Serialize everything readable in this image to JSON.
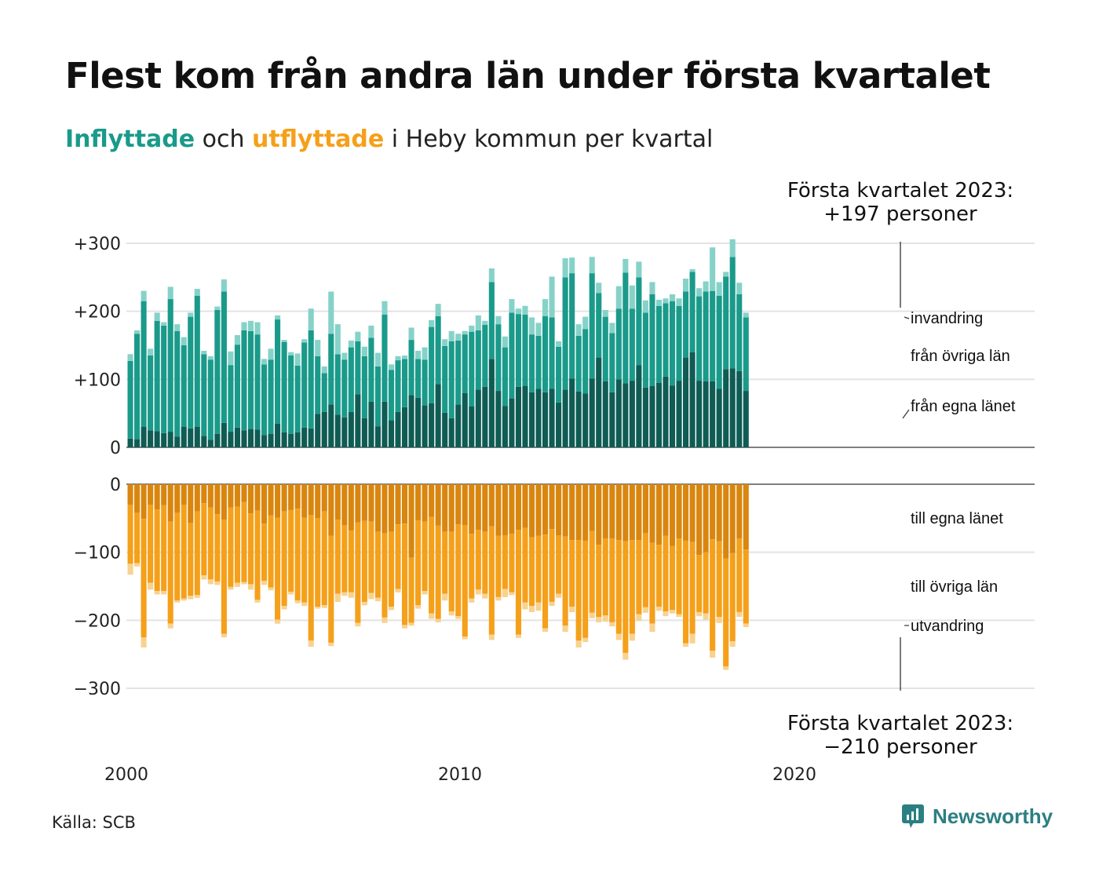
{
  "title": "Flest kom från andra län under första kvartalet",
  "subtitle": {
    "in_word": "Inflyttade",
    "mid_word": " och ",
    "out_word": "utflyttade",
    "rest": " i Heby kommun per kvartal"
  },
  "source": "Källa: SCB",
  "brand": "Newsworthy",
  "colors": {
    "in_own": "#0f5c55",
    "in_other": "#1a9a8a",
    "in_abroad": "#86d2c9",
    "out_own": "#d9860f",
    "out_other": "#f5a01a",
    "out_abroad": "#f8d290",
    "grid": "#e3e3e3",
    "brand": "#2b7f82"
  },
  "chart_data": {
    "type": "bar",
    "stacked": true,
    "x_start": "2000 Q1",
    "x_ticks": [
      "2000",
      "2010",
      "2020"
    ],
    "top_panel": {
      "y_ticks": [
        "+300",
        "+200",
        "+100",
        "0"
      ],
      "ylim": [
        0,
        300
      ],
      "series": [
        {
          "name": "från egna länet",
          "values": [
            13,
            12,
            30,
            25,
            24,
            21,
            23,
            16,
            30,
            28,
            30,
            17,
            11,
            20,
            36,
            23,
            29,
            25,
            27,
            26,
            18,
            20,
            35,
            22,
            20,
            22,
            29,
            28,
            49,
            52,
            63,
            48,
            44,
            52,
            78,
            43,
            67,
            31,
            67,
            40,
            52,
            59,
            77,
            73,
            62,
            65,
            93,
            51,
            43,
            63,
            80,
            60,
            85,
            89,
            130,
            83,
            61,
            72,
            89,
            90,
            81,
            86,
            81,
            86,
            66,
            85,
            101,
            82,
            79,
            101,
            132,
            97,
            81,
            100,
            94,
            98,
            121,
            88,
            90,
            95,
            104,
            91,
            98,
            132,
            140,
            98,
            97,
            97,
            86,
            115,
            116,
            112,
            83
          ]
        },
        {
          "name": "från övriga län",
          "values": [
            114,
            155,
            185,
            110,
            162,
            158,
            195,
            155,
            120,
            164,
            193,
            120,
            118,
            182,
            193,
            98,
            122,
            147,
            144,
            140,
            104,
            109,
            153,
            133,
            115,
            98,
            125,
            144,
            85,
            57,
            104,
            89,
            85,
            95,
            78,
            91,
            94,
            88,
            128,
            74,
            76,
            71,
            81,
            57,
            67,
            112,
            100,
            98,
            113,
            94,
            86,
            110,
            87,
            91,
            113,
            98,
            86,
            126,
            107,
            105,
            85,
            78,
            112,
            105,
            82,
            165,
            155,
            82,
            95,
            155,
            95,
            95,
            87,
            104,
            163,
            106,
            129,
            110,
            135,
            113,
            108,
            124,
            110,
            97,
            118,
            124,
            132,
            133,
            137,
            136,
            164,
            113,
            108
          ]
        },
        {
          "name": "invandring",
          "values": [
            10,
            5,
            15,
            10,
            12,
            5,
            18,
            10,
            12,
            6,
            10,
            5,
            5,
            5,
            18,
            20,
            14,
            12,
            15,
            18,
            8,
            16,
            6,
            3,
            5,
            18,
            5,
            32,
            24,
            10,
            62,
            44,
            10,
            10,
            14,
            14,
            18,
            20,
            20,
            8,
            6,
            5,
            18,
            12,
            18,
            10,
            18,
            10,
            15,
            10,
            5,
            9,
            22,
            6,
            20,
            12,
            16,
            20,
            8,
            13,
            25,
            19,
            25,
            60,
            8,
            28,
            23,
            17,
            18,
            24,
            15,
            10,
            15,
            33,
            20,
            34,
            23,
            18,
            18,
            9,
            7,
            10,
            11,
            19,
            4,
            12,
            15,
            64,
            20,
            7,
            26,
            17,
            7
          ]
        }
      ]
    },
    "bottom_panel": {
      "y_ticks": [
        "0",
        "−100",
        "−200",
        "−300"
      ],
      "ylim": [
        -300,
        0
      ],
      "series": [
        {
          "name": "till egna länet",
          "values": [
            -30,
            -42,
            -51,
            -30,
            -37,
            -31,
            -55,
            -42,
            -30,
            -57,
            -40,
            -28,
            -34,
            -44,
            -52,
            -34,
            -33,
            -26,
            -43,
            -39,
            -58,
            -46,
            -49,
            -40,
            -38,
            -36,
            -49,
            -45,
            -50,
            -40,
            -76,
            -52,
            -60,
            -68,
            -56,
            -54,
            -55,
            -70,
            -72,
            -70,
            -59,
            -58,
            -108,
            -53,
            -55,
            -48,
            -61,
            -70,
            -70,
            -59,
            -60,
            -73,
            -67,
            -70,
            -62,
            -76,
            -75,
            -73,
            -67,
            -64,
            -78,
            -76,
            -74,
            -66,
            -75,
            -77,
            -82,
            -82,
            -83,
            -69,
            -89,
            -80,
            -80,
            -82,
            -84,
            -82,
            -82,
            -72,
            -86,
            -89,
            -76,
            -91,
            -80,
            -83,
            -85,
            -104,
            -100,
            -81,
            -84,
            -109,
            -101,
            -80,
            -96
          ]
        },
        {
          "name": "till övriga län",
          "values": [
            -87,
            -74,
            -174,
            -115,
            -120,
            -126,
            -150,
            -129,
            -138,
            -107,
            -123,
            -106,
            -106,
            -99,
            -168,
            -117,
            -112,
            -118,
            -104,
            -131,
            -84,
            -106,
            -150,
            -139,
            -120,
            -135,
            -125,
            -185,
            -130,
            -138,
            -157,
            -109,
            -99,
            -91,
            -148,
            -119,
            -105,
            -97,
            -124,
            -110,
            -95,
            -149,
            -96,
            -125,
            -102,
            -142,
            -137,
            -91,
            -117,
            -135,
            -164,
            -95,
            -88,
            -91,
            -159,
            -90,
            -79,
            -86,
            -154,
            -110,
            -101,
            -98,
            -138,
            -107,
            -86,
            -131,
            -98,
            -148,
            -143,
            -120,
            -106,
            -113,
            -123,
            -138,
            -164,
            -138,
            -109,
            -109,
            -119,
            -91,
            -111,
            -94,
            -111,
            -151,
            -135,
            -84,
            -90,
            -164,
            -111,
            -159,
            -130,
            -108,
            -109
          ]
        },
        {
          "name": "utvandring",
          "values": [
            -16,
            -5,
            -15,
            -10,
            -5,
            -5,
            -7,
            -3,
            -3,
            -5,
            -4,
            -6,
            -7,
            -5,
            -5,
            -4,
            -6,
            -3,
            -8,
            -4,
            -6,
            -4,
            -6,
            -5,
            -4,
            -4,
            -5,
            -9,
            -3,
            -4,
            -5,
            -12,
            -5,
            -8,
            -5,
            -5,
            -9,
            -5,
            -8,
            -5,
            -5,
            -5,
            -4,
            -5,
            -5,
            -8,
            -5,
            -10,
            -6,
            -4,
            -4,
            -6,
            -7,
            -7,
            -8,
            -5,
            -12,
            -4,
            -5,
            -10,
            -9,
            -12,
            -5,
            -6,
            -6,
            -9,
            -8,
            -10,
            -6,
            -8,
            -8,
            -9,
            -6,
            -9,
            -10,
            -10,
            -10,
            -8,
            -12,
            -6,
            -7,
            -5,
            -4,
            -5,
            -14,
            -6,
            -9,
            -10,
            -9,
            -5,
            -8,
            -7,
            -5
          ]
        }
      ]
    },
    "annotations": {
      "top_line1": "Första kvartalet 2023:",
      "top_line2": "+197 personer",
      "bottom_line1": "Första kvartalet 2023:",
      "bottom_line2": "−210 personer"
    }
  }
}
